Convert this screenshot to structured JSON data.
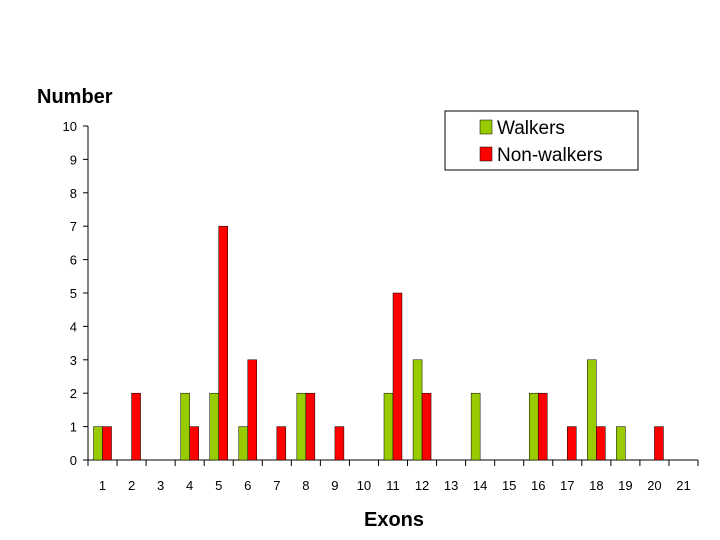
{
  "chart_data": {
    "type": "bar",
    "title": "",
    "ylabel": "Number",
    "xlabel": "Exons",
    "ylim": [
      0,
      10
    ],
    "yticks": [
      0,
      1,
      2,
      3,
      4,
      5,
      6,
      7,
      8,
      9,
      10
    ],
    "categories": [
      "1",
      "2",
      "3",
      "4",
      "5",
      "6",
      "7",
      "8",
      "9",
      "10",
      "11",
      "12",
      "13",
      "14",
      "15",
      "16",
      "17",
      "18",
      "19",
      "20",
      "21"
    ],
    "series": [
      {
        "name": "Walkers",
        "color": "#99cc00",
        "values": [
          1,
          0,
          0,
          2,
          2,
          1,
          0,
          2,
          0,
          0,
          2,
          3,
          0,
          2,
          0,
          2,
          0,
          3,
          1,
          0,
          0
        ]
      },
      {
        "name": "Non-walkers",
        "color": "#ff0000",
        "values": [
          1,
          2,
          0,
          1,
          7,
          3,
          1,
          2,
          1,
          0,
          5,
          2,
          0,
          0,
          0,
          2,
          1,
          1,
          0,
          1,
          0
        ]
      }
    ],
    "legend_position": "top-right",
    "grid": false
  }
}
